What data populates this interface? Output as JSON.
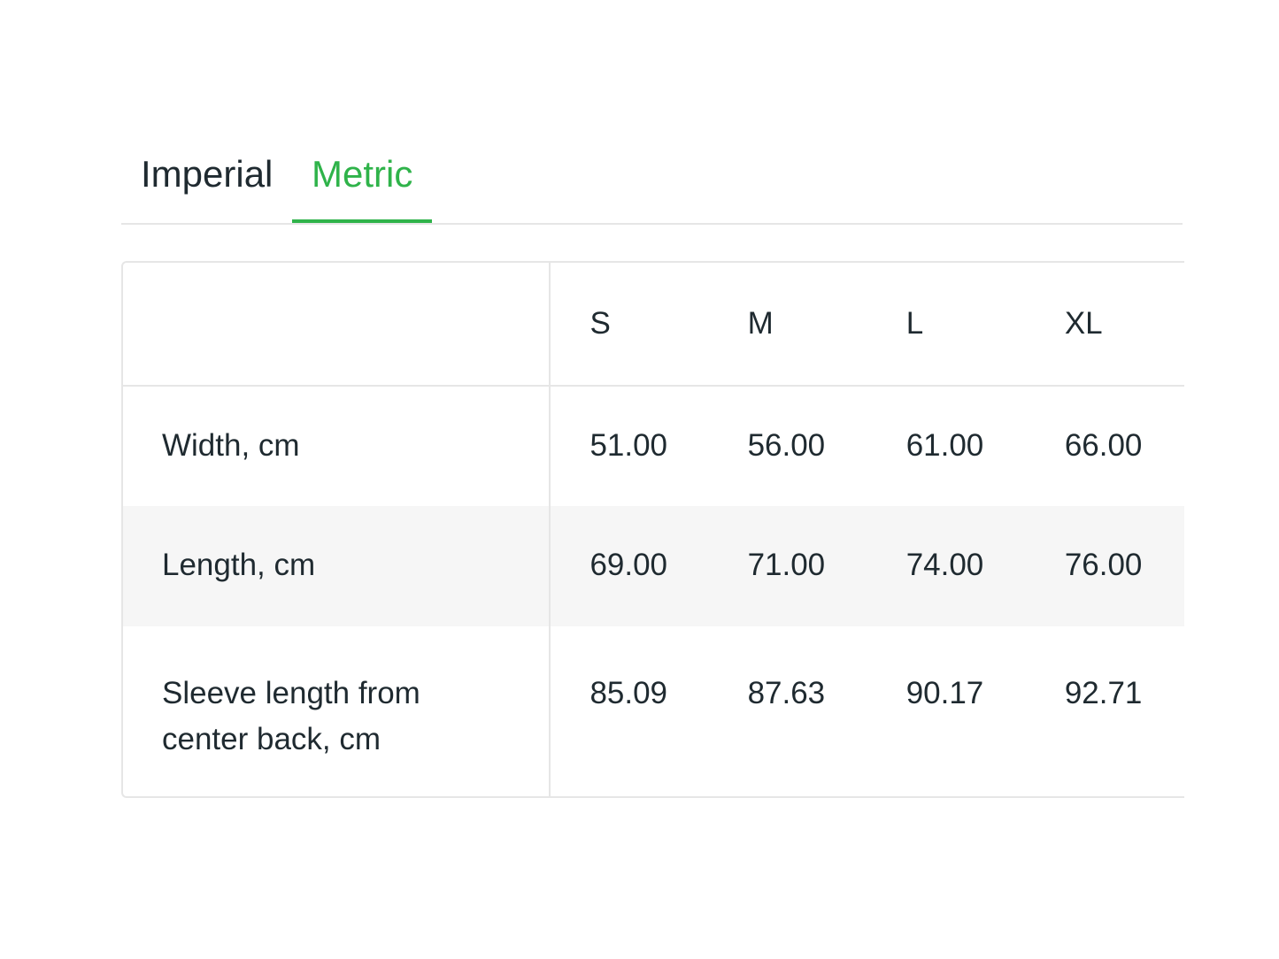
{
  "tabs": [
    {
      "label": "Imperial",
      "active": false
    },
    {
      "label": "Metric",
      "active": true
    }
  ],
  "accent_color": "#2fb34a",
  "table": {
    "headers": [
      "",
      "S",
      "M",
      "L",
      "XL"
    ],
    "rows": [
      {
        "label": "Width, cm",
        "values": [
          "51.00",
          "56.00",
          "61.00",
          "66.00"
        ]
      },
      {
        "label": "Length, cm",
        "values": [
          "69.00",
          "71.00",
          "74.00",
          "76.00"
        ]
      },
      {
        "label": "Sleeve length from center back, cm",
        "values": [
          "85.09",
          "87.63",
          "90.17",
          "92.71"
        ]
      }
    ]
  }
}
